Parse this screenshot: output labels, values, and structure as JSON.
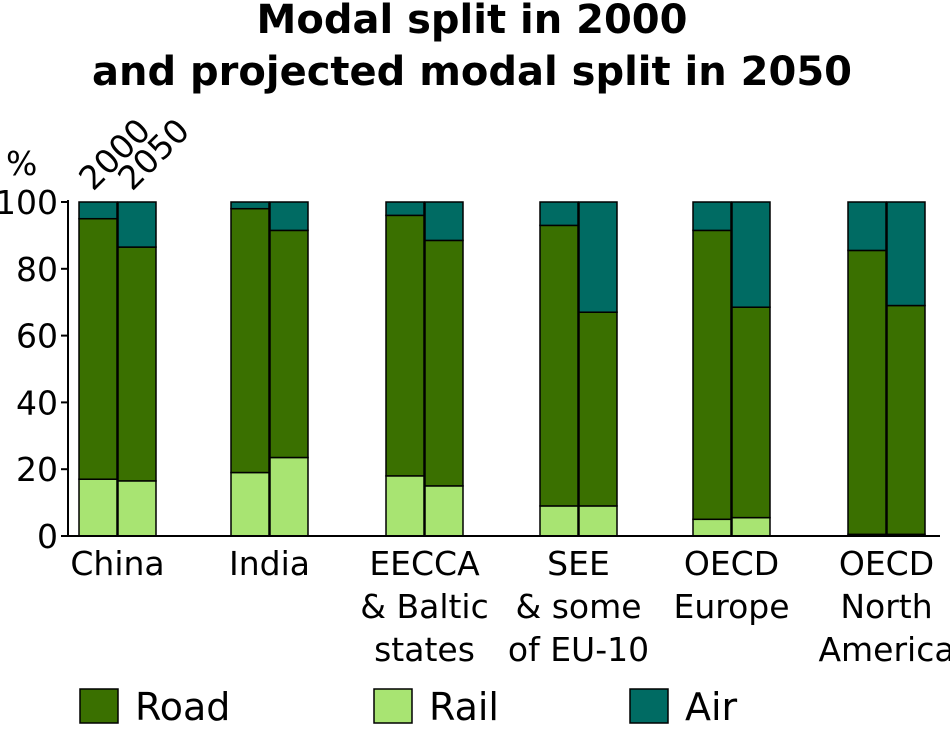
{
  "chart_data": {
    "type": "bar",
    "stacked": true,
    "title_lines": [
      "Modal split in 2000",
      "and projected modal split in 2050"
    ],
    "ylabel": "%",
    "ylim": [
      0,
      100
    ],
    "yticks": [
      0,
      20,
      40,
      60,
      80,
      100
    ],
    "year_labels": [
      "2000",
      "2050"
    ],
    "categories": [
      {
        "lines": [
          "China"
        ]
      },
      {
        "lines": [
          "India"
        ]
      },
      {
        "lines": [
          "EECCA",
          "& Baltic",
          "states"
        ]
      },
      {
        "lines": [
          "SEE",
          "& some",
          "of EU-10"
        ]
      },
      {
        "lines": [
          "OECD",
          "Europe"
        ]
      },
      {
        "lines": [
          "OECD",
          "North",
          "America"
        ]
      }
    ],
    "series": [
      {
        "name": "Rail",
        "color": "#a8e472",
        "values_2000": [
          17,
          19,
          18,
          9,
          5,
          0.5
        ],
        "values_2050": [
          16.5,
          23.5,
          15,
          9,
          5.5,
          0.5
        ]
      },
      {
        "name": "Road",
        "color": "#3a7000",
        "values_2000": [
          78,
          79,
          78,
          84,
          86.5,
          85
        ],
        "values_2050": [
          70,
          68,
          73.5,
          58,
          63,
          68.5
        ]
      },
      {
        "name": "Air",
        "color": "#006b63",
        "values_2000": [
          5,
          2,
          4,
          7,
          8.5,
          14.5
        ],
        "values_2050": [
          13.5,
          8.5,
          11.5,
          33,
          31.5,
          31
        ]
      }
    ],
    "legend": {
      "placement": "bottom",
      "items": [
        {
          "name": "Road",
          "color": "#3a7000"
        },
        {
          "name": "Rail",
          "color": "#a8e472"
        },
        {
          "name": "Air",
          "color": "#006b63"
        }
      ]
    }
  }
}
